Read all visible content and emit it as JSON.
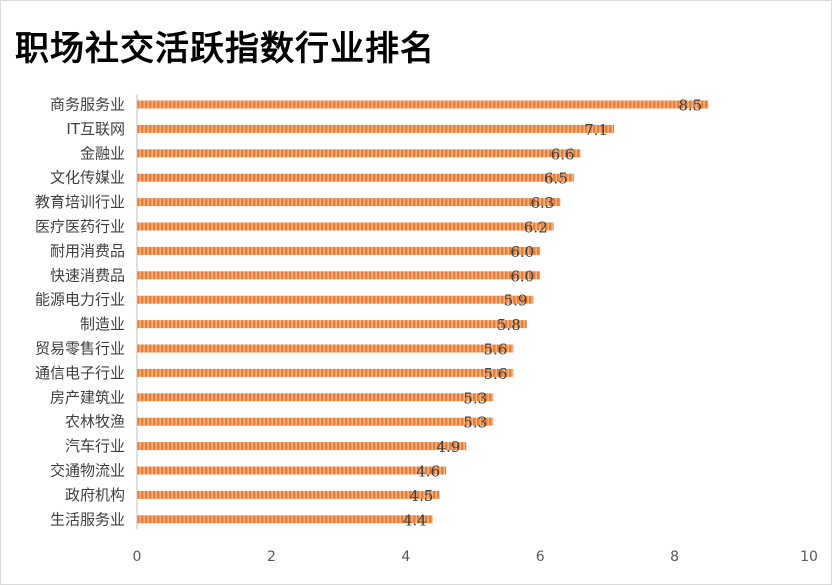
{
  "chart_data": {
    "type": "bar",
    "orientation": "horizontal",
    "title": "职场社交活跃指数行业排名",
    "categories": [
      "商务服务业",
      "IT互联网",
      "金融业",
      "文化传媒业",
      "教育培训行业",
      "医疗医药行业",
      "耐用消费品",
      "快速消费品",
      "能源电力行业",
      "制造业",
      "贸易零售行业",
      "通信电子行业",
      "房产建筑业",
      "农林牧渔",
      "汽车行业",
      "交通物流业",
      "政府机构",
      "生活服务业"
    ],
    "values": [
      8.5,
      7.1,
      6.6,
      6.5,
      6.3,
      6.2,
      6.0,
      6.0,
      5.9,
      5.8,
      5.6,
      5.6,
      5.3,
      5.3,
      4.9,
      4.6,
      4.5,
      4.4
    ],
    "value_labels": [
      "8.5",
      "7.1",
      "6.6",
      "6.5",
      "6.3",
      "6.2",
      "6.0",
      "6.0",
      "5.9",
      "5.8",
      "5.6",
      "5.6",
      "5.3",
      "5.3",
      "4.9",
      "4.6",
      "4.5",
      "4.4"
    ],
    "xlim": [
      0,
      10
    ],
    "x_ticks": [
      0,
      2,
      4,
      6,
      8,
      10
    ],
    "grid": false,
    "legend": "none",
    "bar_color": "#ed7d31",
    "bar_pattern": "vertical-stripes"
  }
}
